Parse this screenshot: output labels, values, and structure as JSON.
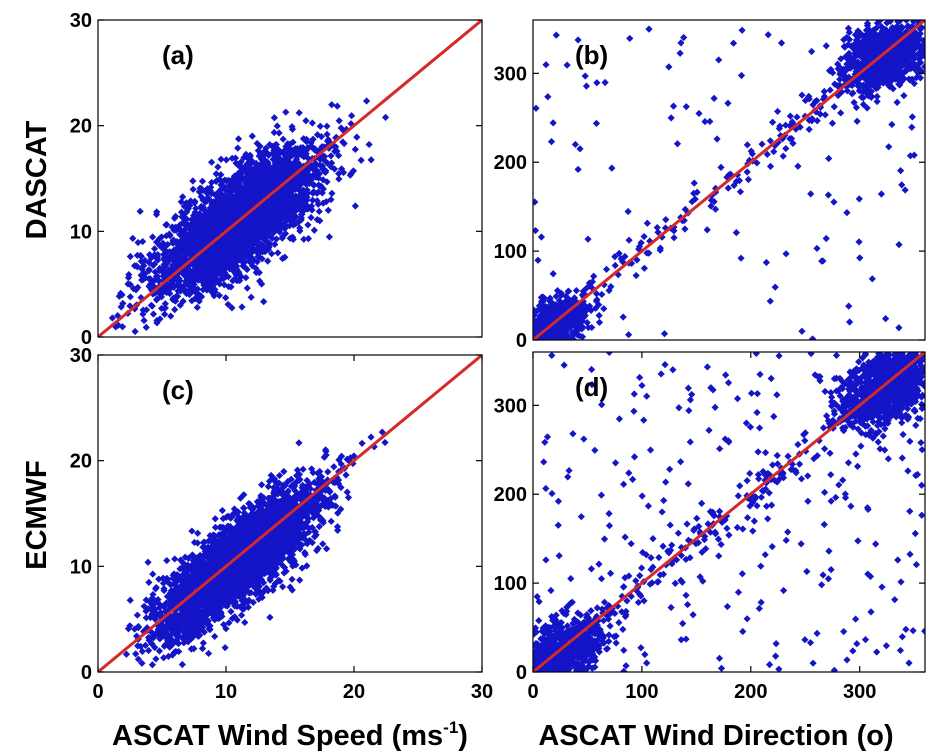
{
  "figure": {
    "left_ylabel_top": "DASCAT",
    "left_ylabel_bottom": "ECMWF",
    "xlabel_left": {
      "main": "ASCAT Wind Speed (ms",
      "sup": "-1",
      "close": ")"
    },
    "xlabel_right": "ASCAT Wind Direction (o)"
  },
  "colors": {
    "points": "#1414c8",
    "line": "#d42a2a"
  },
  "chart_data": [
    {
      "type": "scatter",
      "panel": "(a)",
      "xlim": [
        0,
        30
      ],
      "ylim": [
        0,
        30
      ],
      "xticks": [],
      "yticks": [
        "0",
        "10",
        "20",
        "30"
      ],
      "identity_line": [
        [
          0,
          0
        ],
        [
          30,
          30
        ]
      ],
      "distribution": {
        "center": [
          11,
          11
        ],
        "sd": [
          3.2,
          3.5
        ],
        "corr": 0.74,
        "n": 3200,
        "min": 0.5
      }
    },
    {
      "type": "scatter",
      "panel": "(b)",
      "xlim": [
        0,
        360
      ],
      "ylim": [
        0,
        360
      ],
      "xticks": [],
      "yticks": [
        "0",
        "100",
        "200",
        "300"
      ],
      "identity_line": [
        [
          0,
          0
        ],
        [
          360,
          360
        ]
      ],
      "clusters": [
        {
          "center": [
            325,
            320
          ],
          "sd": [
            20,
            18
          ],
          "n": 900
        },
        {
          "center": [
            20,
            18
          ],
          "sd": [
            16,
            14
          ],
          "n": 500
        }
      ],
      "diagonal_points": 140,
      "scattered_points": 120
    },
    {
      "type": "scatter",
      "panel": "(c)",
      "xlim": [
        0,
        30
      ],
      "ylim": [
        0,
        30
      ],
      "xticks": [
        "0",
        "10",
        "20",
        "30"
      ],
      "yticks": [
        "0",
        "10",
        "20",
        "30"
      ],
      "identity_line": [
        [
          0,
          0
        ],
        [
          30,
          30
        ]
      ],
      "distribution": {
        "center": [
          11,
          10.5
        ],
        "sd": [
          3.2,
          3.6
        ],
        "corr": 0.82,
        "n": 3200,
        "min": 0.5
      }
    },
    {
      "type": "scatter",
      "panel": "(d)",
      "xlim": [
        0,
        360
      ],
      "ylim": [
        0,
        360
      ],
      "xticks": [
        "0",
        "100",
        "200",
        "300"
      ],
      "yticks": [
        "0",
        "100",
        "200",
        "300"
      ],
      "identity_line": [
        [
          0,
          0
        ],
        [
          360,
          360
        ]
      ],
      "clusters": [
        {
          "center": [
            325,
            320
          ],
          "sd": [
            20,
            20
          ],
          "n": 950
        },
        {
          "center": [
            25,
            22
          ],
          "sd": [
            20,
            18
          ],
          "n": 550
        }
      ],
      "diagonal_points": 180,
      "scattered_points": 260
    }
  ]
}
